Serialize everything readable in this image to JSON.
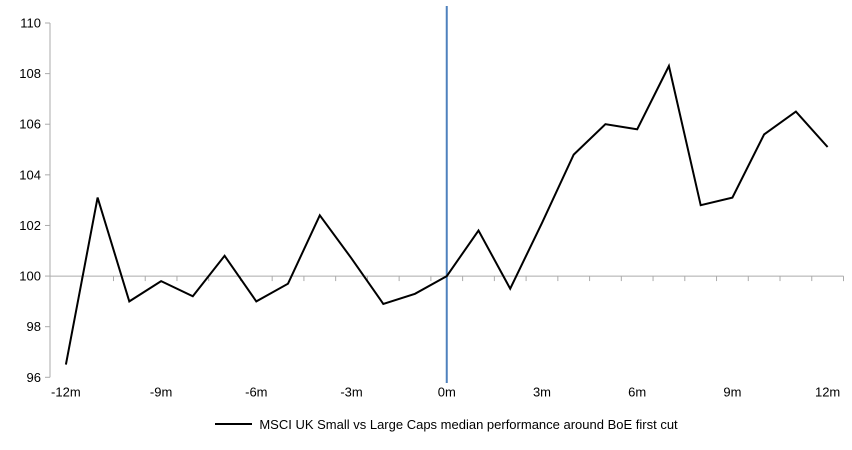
{
  "chart_data": {
    "type": "line",
    "title": "",
    "legend": "MSCI UK Small vs Large Caps median performance around BoE first cut",
    "legend_position": "bottom",
    "x_months": [
      -12,
      -11,
      -10,
      -9,
      -8,
      -7,
      -6,
      -5,
      -4,
      -3,
      -2,
      -1,
      0,
      1,
      2,
      3,
      4,
      5,
      6,
      7,
      8,
      9,
      10,
      11,
      12
    ],
    "values": [
      96.5,
      103.1,
      99.0,
      99.8,
      99.2,
      100.8,
      99.0,
      99.7,
      102.4,
      100.7,
      98.9,
      99.3,
      100.0,
      101.8,
      99.5,
      102.1,
      104.8,
      106.0,
      105.8,
      108.3,
      102.8,
      103.1,
      105.6,
      106.5,
      105.1
    ],
    "x_label_months": [
      -12,
      -9,
      -6,
      -3,
      0,
      3,
      6,
      9,
      12
    ],
    "x_labels": [
      "-12m",
      "-9m",
      "-6m",
      "-3m",
      "0m",
      "3m",
      "6m",
      "9m",
      "12m"
    ],
    "y_ticks": [
      96,
      98,
      100,
      102,
      104,
      106,
      108,
      110
    ],
    "ylim": [
      96,
      110
    ],
    "x_axis_cross_at": 100,
    "event_line_month": 0,
    "grid": "off",
    "colors": {
      "series": "#000000",
      "event_line": "#4F81BD",
      "axis": "#ABABAB",
      "label": "#000000"
    }
  }
}
